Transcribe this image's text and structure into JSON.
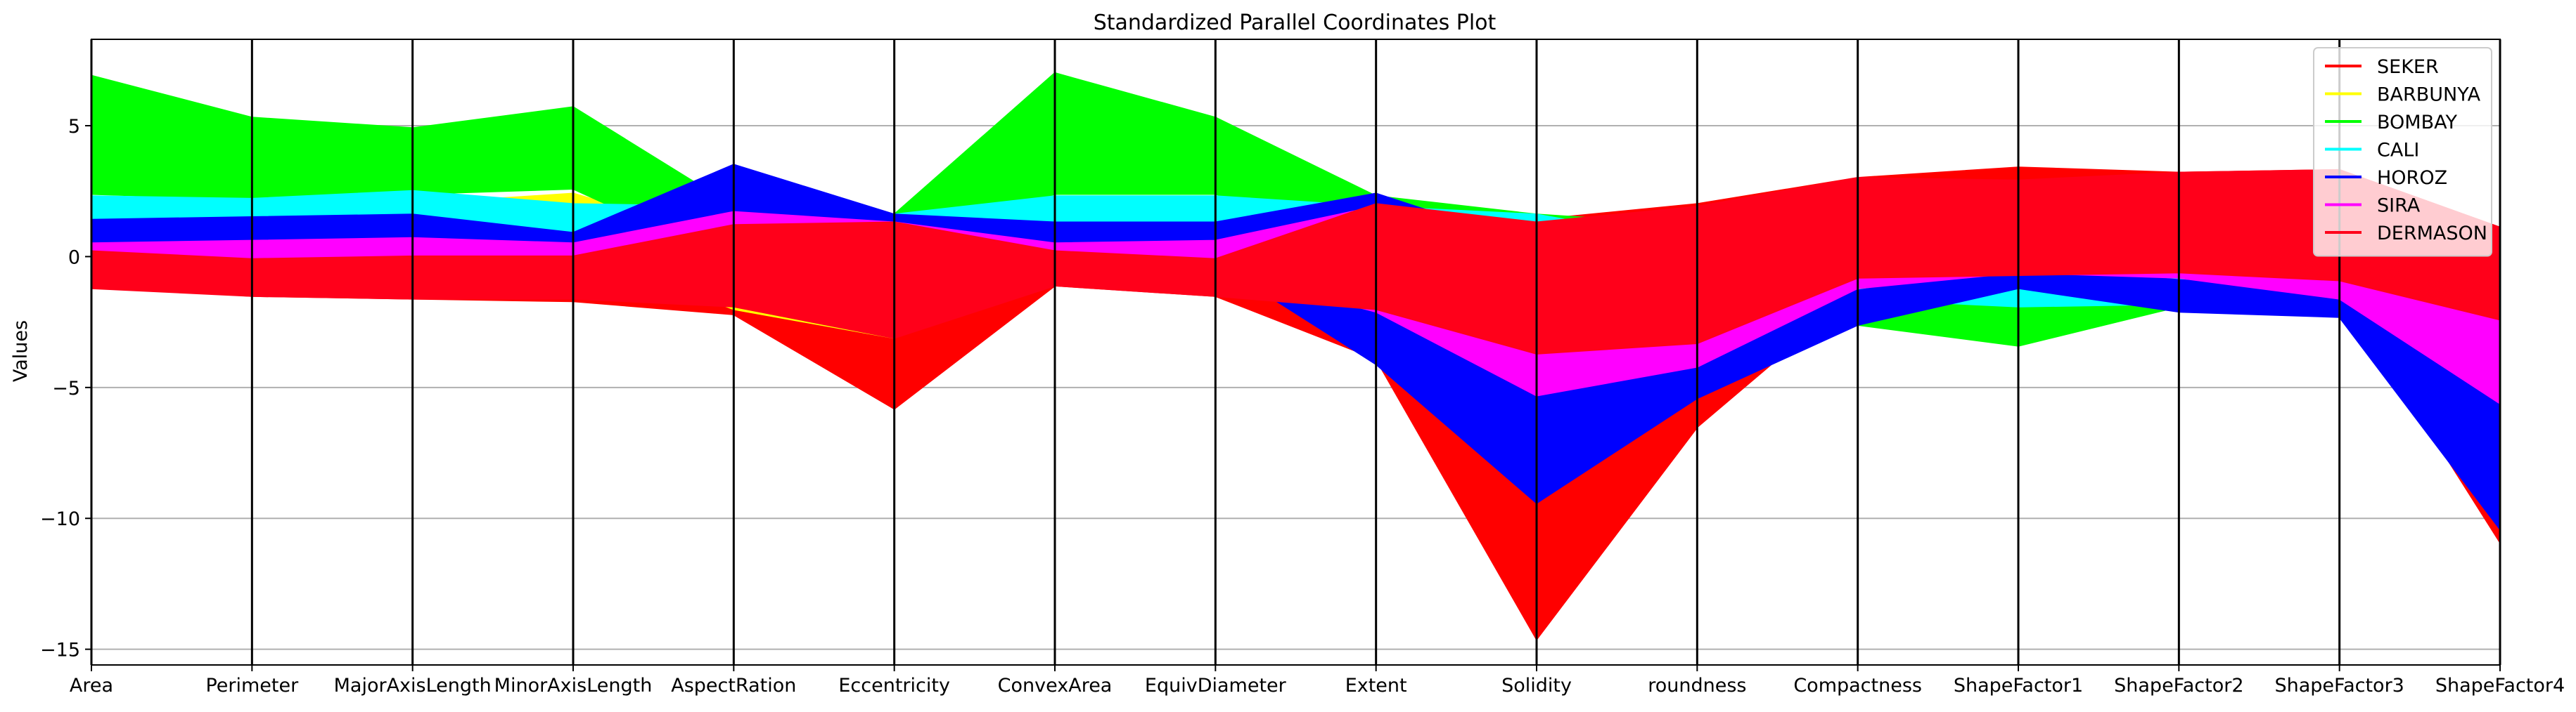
{
  "chart_data": {
    "type": "parallel-coordinates",
    "title": "Standardized Parallel Coordinates Plot",
    "xlabel": "",
    "ylabel": "Values",
    "ylim": [
      -15.6,
      8.3
    ],
    "yticks": [
      -15,
      -10,
      -5,
      0,
      5
    ],
    "grid": "horizontal",
    "legend_position": "top-right",
    "axes": [
      "Area",
      "Perimeter",
      "MajorAxisLength",
      "MinorAxisLength",
      "AspectRation",
      "Eccentricity",
      "ConvexArea",
      "EquivDiameter",
      "Extent",
      "Solidity",
      "roundness",
      "Compactness",
      "ShapeFactor1",
      "ShapeFactor2",
      "ShapeFactor3",
      "ShapeFactor4"
    ],
    "series": [
      {
        "name": "SEKER",
        "color": "#ff0000",
        "bands": [
          {
            "low": [
              -1.1,
              -1.5,
              -1.6,
              -1.7,
              -2.2,
              -5.8,
              -1.1,
              -1.5,
              -3.9,
              -14.6,
              -6.5,
              -1.3,
              -1.7,
              -1.2,
              -1.2,
              -10.9
            ],
            "high": [
              0.6,
              0.3,
              0.5,
              0.3,
              1.4,
              1.3,
              0.6,
              0.4,
              2.2,
              1.4,
              2.0,
              3.0,
              3.4,
              3.2,
              3.3,
              1.1
            ]
          }
        ],
        "lines": [
          [
            -0.3,
            -0.2,
            -0.3,
            -0.1,
            0.3,
            -0.2,
            -0.3,
            -0.2,
            0.5,
            -14.6,
            -6.5,
            0.6,
            1.2,
            1.5,
            1.3,
            -10.9
          ],
          [
            -0.1,
            0.1,
            0.0,
            0.1,
            -0.2,
            -5.8,
            -0.1,
            0.1,
            1.1,
            -8.5,
            -4.5,
            0.3,
            3.4,
            2.3,
            2.1,
            -3.5
          ]
        ]
      },
      {
        "name": "BARBUNYA",
        "color": "#ffff00",
        "bands": [
          {
            "low": [
              0.3,
              0.4,
              0.5,
              0.3,
              -2.0,
              -3.1,
              0.3,
              0.4,
              -1.2,
              -4.3,
              -3.8,
              -0.6,
              -1.0,
              -1.2,
              -1.0,
              -2.4
            ],
            "high": [
              1.6,
              2.1,
              2.0,
              2.4,
              0.6,
              0.3,
              1.6,
              1.8,
              1.5,
              1.2,
              0.5,
              2.2,
              0.4,
              0.3,
              0.3,
              1.0
            ]
          }
        ],
        "lines": []
      },
      {
        "name": "BOMBAY",
        "color": "#00ff00",
        "bands": [
          {
            "low": [
              2.4,
              2.2,
              2.4,
              2.6,
              -0.2,
              0.6,
              2.4,
              2.4,
              0.9,
              0.3,
              0.1,
              -2.6,
              -3.4,
              -1.9,
              -1.6,
              -1.0
            ],
            "high": [
              6.9,
              5.3,
              4.9,
              5.7,
              1.9,
              1.6,
              7.0,
              5.3,
              2.3,
              1.6,
              1.2,
              0.3,
              -1.2,
              -1.3,
              -1.2,
              0.6
            ]
          }
        ],
        "lines": []
      },
      {
        "name": "CALI",
        "color": "#00ffff",
        "bands": [
          {
            "low": [
              0.5,
              0.9,
              1.0,
              0.3,
              -0.2,
              0.2,
              0.5,
              0.7,
              -0.8,
              -1.8,
              -2.2,
              -1.6,
              -1.9,
              -1.8,
              -1.7,
              -1.5
            ],
            "high": [
              2.3,
              2.2,
              2.5,
              2.0,
              1.9,
              1.6,
              2.3,
              2.3,
              1.9,
              1.6,
              0.5,
              -0.7,
              -0.9,
              -0.8,
              -0.9,
              0.1
            ]
          }
        ],
        "lines": []
      },
      {
        "name": "HOROZ",
        "color": "#0000ff",
        "bands": [
          {
            "low": [
              -0.3,
              -0.1,
              0.2,
              -0.6,
              0.9,
              1.0,
              -0.3,
              -0.2,
              -4.1,
              -9.4,
              -5.4,
              -2.6,
              -1.2,
              -2.1,
              -2.3,
              -10.4
            ],
            "high": [
              1.4,
              1.5,
              1.6,
              0.9,
              3.5,
              1.6,
              1.3,
              1.3,
              2.4,
              0.4,
              -0.9,
              -1.3,
              -0.4,
              -0.9,
              -1.3,
              -2.2
            ]
          }
        ],
        "lines": [
          [
            0.4,
            0.6,
            0.9,
            0.1,
            2.6,
            1.3,
            0.4,
            0.5,
            -1.8,
            -9.4,
            -5.2,
            -2.2,
            -0.8,
            -1.6,
            -2.0,
            -10.2
          ]
        ]
      },
      {
        "name": "SIRA",
        "color": "#ff00ff",
        "bands": [
          {
            "low": [
              -0.7,
              -0.4,
              -0.3,
              -0.6,
              0.1,
              -0.3,
              -0.7,
              -0.5,
              -2.1,
              -5.3,
              -4.2,
              -1.2,
              -0.6,
              -0.8,
              -1.6,
              -5.6
            ],
            "high": [
              0.5,
              0.6,
              0.7,
              0.5,
              1.7,
              1.3,
              0.5,
              0.6,
              1.9,
              -0.3,
              -1.1,
              -0.3,
              0.2,
              0.1,
              -0.8,
              -1.5
            ]
          }
        ],
        "lines": []
      },
      {
        "name": "DERMASON",
        "color": "#ff001a",
        "bands": [
          {
            "low": [
              -1.2,
              -1.5,
              -1.6,
              -1.6,
              -1.9,
              -3.1,
              -1.1,
              -1.5,
              -2.0,
              -3.7,
              -3.3,
              -0.8,
              -0.7,
              -0.6,
              -0.9,
              -2.4
            ],
            "high": [
              0.2,
              -0.1,
              0.0,
              0.0,
              1.2,
              1.3,
              0.2,
              -0.1,
              2.0,
              1.3,
              1.9,
              3.0,
              2.9,
              3.2,
              3.3,
              1.1
            ]
          }
        ],
        "lines": []
      }
    ]
  }
}
